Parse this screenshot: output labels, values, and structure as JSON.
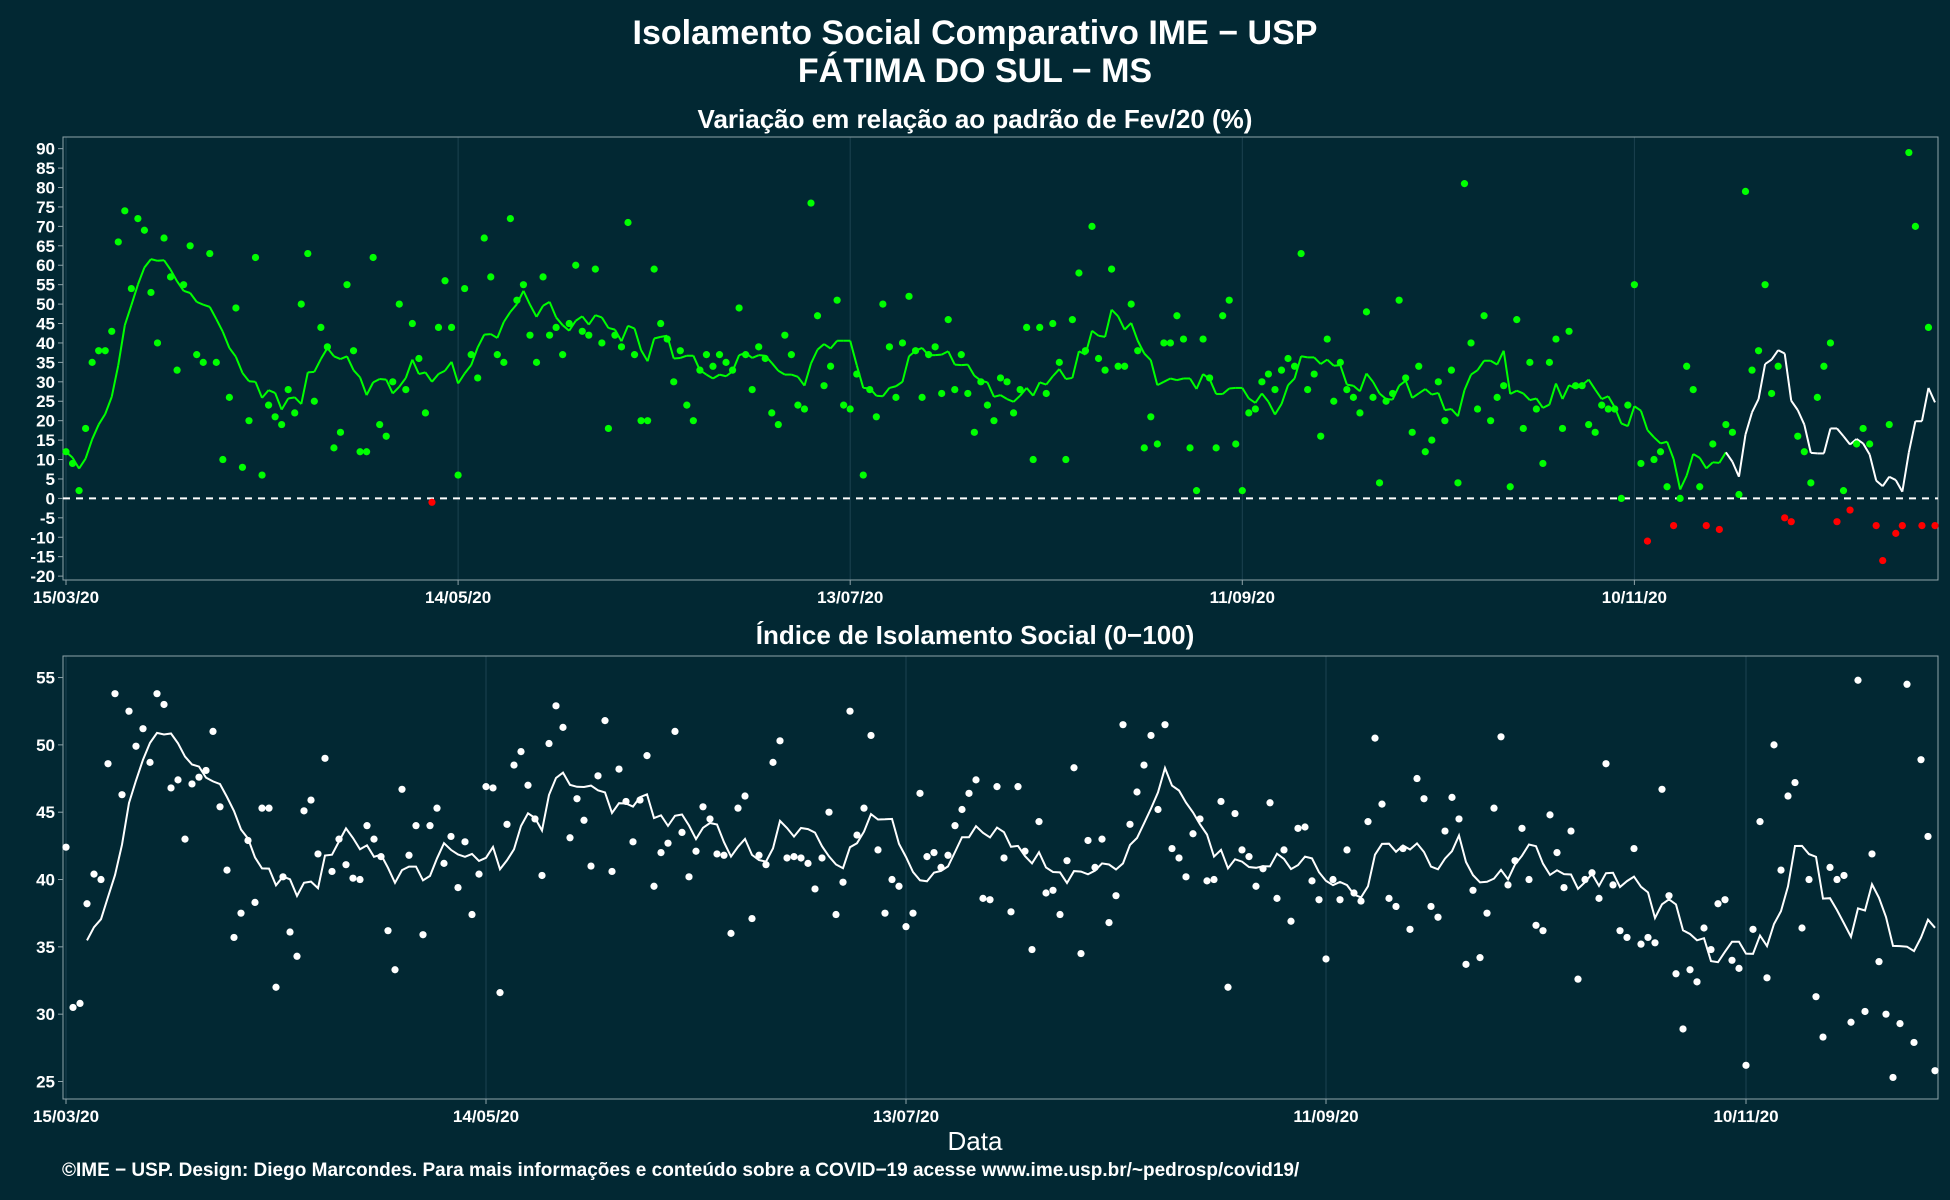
{
  "title": "Isolamento Social Comparativo IME − USP",
  "subtitle": "FÁTIMA DO SUL − MS",
  "footer": "©IME − USP. Design: Diego Marcondes. Para mais informações e conteúdo sobre a COVID−19 acesse www.ime.usp.br/~pedrosp/covid19/",
  "colors": {
    "background": "#022833",
    "positive": "#00ff00",
    "negative": "#ff0000",
    "index": "#ffffff",
    "grid": "#1c4250"
  },
  "chart_data": [
    {
      "type": "scatter",
      "title": "Variação em relação ao padrão de Fev/20 (%)",
      "xlabel": "",
      "ylabel": "",
      "x_start": "15/03/20",
      "x_ticks": [
        "15/03/20",
        "14/05/20",
        "13/07/20",
        "11/09/20",
        "10/11/20"
      ],
      "y_ticks": [
        "90",
        "85",
        "80",
        "75",
        "70",
        "65",
        "60",
        "55",
        "50",
        "45",
        "40",
        "35",
        "30",
        "25",
        "20",
        "15",
        "10",
        "5",
        "0",
        "-5",
        "-10",
        "-15",
        "-20"
      ],
      "ylim": [
        -21,
        93
      ],
      "reference_line": 0,
      "grid": true,
      "series": [
        {
          "values": [
            12,
            9,
            2,
            18,
            35,
            38,
            38,
            43,
            66,
            74,
            54,
            72,
            69,
            53,
            40,
            67,
            57,
            33,
            55,
            65,
            37,
            35,
            63,
            35,
            10,
            26,
            49,
            8,
            20,
            62,
            6,
            24,
            21,
            19,
            28,
            22,
            50,
            63,
            25,
            44,
            39,
            13,
            17,
            55,
            38,
            12,
            12,
            62,
            19,
            16,
            30,
            50,
            28,
            45,
            36,
            22,
            -1,
            44,
            56,
            44,
            6,
            54,
            37,
            31,
            67,
            57,
            37,
            35,
            72,
            51,
            55,
            42,
            35,
            57,
            42,
            44,
            37,
            45,
            60,
            43,
            42,
            59,
            40,
            18,
            42,
            39,
            71,
            37,
            20,
            20,
            59,
            45,
            41,
            30,
            38,
            24,
            20,
            33,
            37,
            34,
            37,
            35,
            33,
            49,
            37,
            28,
            39,
            36,
            22,
            19,
            42,
            37,
            24,
            23,
            76,
            47,
            29,
            34,
            51,
            24,
            23,
            32,
            6,
            28,
            21,
            50,
            39,
            26,
            40,
            52,
            38,
            26,
            37,
            39,
            27,
            46,
            28,
            37,
            27,
            17,
            30,
            24,
            20,
            31,
            30,
            22,
            28,
            44,
            10,
            44,
            27,
            45,
            35,
            10,
            46,
            58,
            38,
            70,
            36,
            33,
            59,
            34,
            34,
            50,
            38,
            13,
            21,
            14,
            40,
            40,
            47,
            41,
            13,
            2,
            41,
            31,
            13,
            47,
            51,
            14,
            2,
            22,
            23,
            30,
            32,
            28,
            33,
            36,
            34,
            63,
            28,
            32,
            16,
            41,
            25,
            35,
            28,
            26,
            22,
            48,
            26,
            4,
            25,
            27,
            51,
            31,
            17,
            34,
            12,
            15,
            30,
            20,
            33,
            4,
            81,
            40,
            23,
            47,
            20,
            26,
            29,
            3,
            46,
            18,
            35,
            23,
            9,
            35,
            41,
            18,
            43,
            29,
            29,
            19,
            17,
            24,
            23,
            23,
            0,
            24,
            55,
            9,
            -11,
            10,
            12,
            3,
            -7,
            0,
            34,
            28,
            3,
            -7,
            14,
            -8,
            19,
            17,
            1,
            79,
            33,
            38,
            55,
            27,
            34,
            -5,
            -6,
            16,
            12,
            4,
            26,
            34,
            40,
            -6,
            2,
            -3,
            14,
            18,
            14,
            -7,
            -16,
            19,
            -9,
            -7,
            89,
            70,
            -7,
            44,
            -7
          ]
        }
      ]
    },
    {
      "type": "scatter",
      "title": "Índice de Isolamento Social (0−100)",
      "xlabel": "Data",
      "ylabel": "",
      "x_start": "15/03/20",
      "x_ticks": [
        "15/03/20",
        "14/05/20",
        "13/07/20",
        "11/09/20",
        "10/11/20"
      ],
      "y_ticks": [
        "55",
        "50",
        "45",
        "40",
        "35",
        "30",
        "25"
      ],
      "ylim": [
        23.7,
        56.6
      ],
      "grid": true,
      "series": [
        {
          "values": [
            42.4,
            30.5,
            30.8,
            38.2,
            40.4,
            40.0,
            48.6,
            53.8,
            46.3,
            52.5,
            49.9,
            51.2,
            48.7,
            53.8,
            53.0,
            46.8,
            47.4,
            43.0,
            47.1,
            47.6,
            48.1,
            51.0,
            45.4,
            40.7,
            35.7,
            37.5,
            42.9,
            38.3,
            45.3,
            45.3,
            32.0,
            40.2,
            36.1,
            34.3,
            45.1,
            45.9,
            41.9,
            49.0,
            40.6,
            43.0,
            41.1,
            40.1,
            40.0,
            44.0,
            43.0,
            41.7,
            36.2,
            33.3,
            46.7,
            41.8,
            44.0,
            35.9,
            44.0,
            45.3,
            41.2,
            43.2,
            39.4,
            42.8,
            37.4,
            40.4,
            46.9,
            46.8,
            31.6,
            44.1,
            48.5,
            49.5,
            47.0,
            44.5,
            40.3,
            50.1,
            52.9,
            51.3,
            43.1,
            46.0,
            44.4,
            41.0,
            47.7,
            51.8,
            40.6,
            48.2,
            45.8,
            42.8,
            45.9,
            49.2,
            39.5,
            42.0,
            42.7,
            51.0,
            43.5,
            40.2,
            42.1,
            45.4,
            44.5,
            41.9,
            41.8,
            36.0,
            45.3,
            46.2,
            37.1,
            41.8,
            41.1,
            48.7,
            50.3,
            41.6,
            41.7,
            41.6,
            41.2,
            39.3,
            41.6,
            45.0,
            37.4,
            39.8,
            52.5,
            43.3,
            45.3,
            50.7,
            42.2,
            37.5,
            40.0,
            39.5,
            36.5,
            37.5,
            46.4,
            41.7,
            42.0,
            40.9,
            41.8,
            44.0,
            45.2,
            46.4,
            47.4,
            38.6,
            38.5,
            46.9,
            41.6,
            37.6,
            46.9,
            42.1,
            34.8,
            44.3,
            39.0,
            39.2,
            37.4,
            41.4,
            48.3,
            34.5,
            42.9,
            40.9,
            43.0,
            36.8,
            38.8,
            51.5,
            44.1,
            46.5,
            48.5,
            50.7,
            45.2,
            51.5,
            42.3,
            41.6,
            40.2,
            43.4,
            44.5,
            39.9,
            40.0,
            45.8,
            32.0,
            44.9,
            42.2,
            41.7,
            39.5,
            40.8,
            45.7,
            38.6,
            42.2,
            36.9,
            43.8,
            43.9,
            39.9,
            38.5,
            34.1,
            40.0,
            38.5,
            42.2,
            39.0,
            38.4,
            44.3,
            50.5,
            45.6,
            38.6,
            38.0,
            42.3,
            36.3,
            47.5,
            46.0,
            38.0,
            37.2,
            43.6,
            46.1,
            44.5,
            33.7,
            39.2,
            34.2,
            37.5,
            45.3,
            50.6,
            39.6,
            41.4,
            43.8,
            40.0,
            36.6,
            36.2,
            44.8,
            42.0,
            39.4,
            43.6,
            32.6,
            40.0,
            40.5,
            38.6,
            48.6,
            39.6,
            36.2,
            35.7,
            42.3,
            35.2,
            35.7,
            35.3,
            46.7,
            38.8,
            33.0,
            28.9,
            33.3,
            32.4,
            36.4,
            34.8,
            38.2,
            38.5,
            34.0,
            33.4,
            26.2,
            36.3,
            44.3,
            32.7,
            50.0,
            40.7,
            46.2,
            47.2,
            36.4,
            40.0,
            31.3,
            28.3,
            40.9,
            40.0,
            40.3,
            29.4,
            54.8,
            30.2,
            41.9,
            33.9,
            30.0,
            25.3,
            29.3,
            54.5,
            27.9,
            48.9,
            43.2,
            25.8
          ]
        }
      ]
    }
  ]
}
